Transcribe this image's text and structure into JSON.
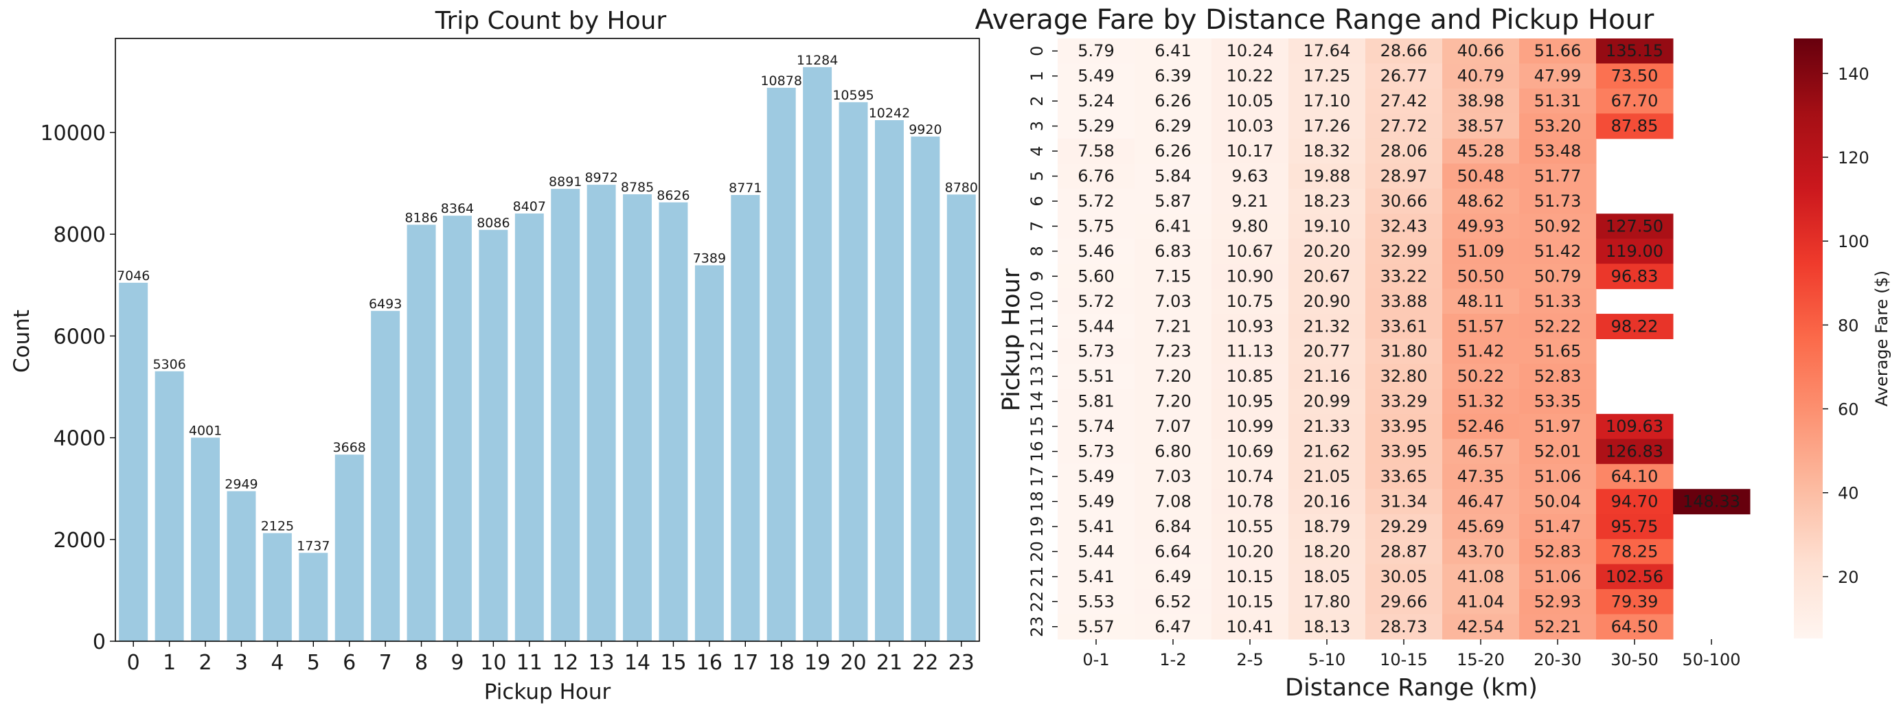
{
  "chart_data": [
    {
      "type": "bar",
      "title": "Trip Count by Hour",
      "xlabel": "Pickup Hour",
      "ylabel": "Count",
      "categories": [
        "0",
        "1",
        "2",
        "3",
        "4",
        "5",
        "6",
        "7",
        "8",
        "9",
        "10",
        "11",
        "12",
        "13",
        "14",
        "15",
        "16",
        "17",
        "18",
        "19",
        "20",
        "21",
        "22",
        "23"
      ],
      "values": [
        7046,
        5306,
        4001,
        2949,
        2125,
        1737,
        3668,
        6493,
        8186,
        8364,
        8086,
        8407,
        8891,
        8972,
        8785,
        8626,
        7389,
        8771,
        10878,
        11284,
        10595,
        10242,
        9920,
        8780
      ],
      "ylim": [
        0,
        11848
      ],
      "yticks": [
        0,
        2000,
        4000,
        6000,
        8000,
        10000
      ],
      "grid": false,
      "bar_color": "#9ecae1",
      "data_labels": true
    },
    {
      "type": "heatmap",
      "title": "Average Fare by Distance Range and Pickup Hour",
      "xlabel": "Distance Range (km)",
      "ylabel": "Pickup Hour",
      "x_categories": [
        "0-1",
        "1-2",
        "2-5",
        "5-10",
        "10-15",
        "15-20",
        "20-30",
        "30-50",
        "50-100"
      ],
      "y_categories": [
        "0",
        "1",
        "2",
        "3",
        "4",
        "5",
        "6",
        "7",
        "8",
        "9",
        "10",
        "11",
        "12",
        "13",
        "14",
        "15",
        "16",
        "17",
        "18",
        "19",
        "20",
        "21",
        "22",
        "23"
      ],
      "values": [
        [
          5.79,
          6.41,
          10.24,
          17.64,
          28.66,
          40.66,
          51.66,
          135.15,
          null
        ],
        [
          5.49,
          6.39,
          10.22,
          17.25,
          26.77,
          40.79,
          47.99,
          73.5,
          null
        ],
        [
          5.24,
          6.26,
          10.05,
          17.1,
          27.42,
          38.98,
          51.31,
          67.7,
          null
        ],
        [
          5.29,
          6.29,
          10.03,
          17.26,
          27.72,
          38.57,
          53.2,
          87.85,
          null
        ],
        [
          7.58,
          6.26,
          10.17,
          18.32,
          28.06,
          45.28,
          53.48,
          null,
          null
        ],
        [
          6.76,
          5.84,
          9.63,
          19.88,
          28.97,
          50.48,
          51.77,
          null,
          null
        ],
        [
          5.72,
          5.87,
          9.21,
          18.23,
          30.66,
          48.62,
          51.73,
          null,
          null
        ],
        [
          5.75,
          6.41,
          9.8,
          19.1,
          32.43,
          49.93,
          50.92,
          127.5,
          null
        ],
        [
          5.46,
          6.83,
          10.67,
          20.2,
          32.99,
          51.09,
          51.42,
          119.0,
          null
        ],
        [
          5.6,
          7.15,
          10.9,
          20.67,
          33.22,
          50.5,
          50.79,
          96.83,
          null
        ],
        [
          5.72,
          7.03,
          10.75,
          20.9,
          33.88,
          48.11,
          51.33,
          null,
          null
        ],
        [
          5.44,
          7.21,
          10.93,
          21.32,
          33.61,
          51.57,
          52.22,
          98.22,
          null
        ],
        [
          5.73,
          7.23,
          11.13,
          20.77,
          31.8,
          51.42,
          51.65,
          null,
          null
        ],
        [
          5.51,
          7.2,
          10.85,
          21.16,
          32.8,
          50.22,
          52.83,
          null,
          null
        ],
        [
          5.81,
          7.2,
          10.95,
          20.99,
          33.29,
          51.32,
          53.35,
          null,
          null
        ],
        [
          5.74,
          7.07,
          10.99,
          21.33,
          33.95,
          52.46,
          51.97,
          109.63,
          null
        ],
        [
          5.73,
          6.8,
          10.69,
          21.62,
          33.95,
          46.57,
          52.01,
          126.83,
          null
        ],
        [
          5.49,
          7.03,
          10.74,
          21.05,
          33.65,
          47.35,
          51.06,
          64.1,
          null
        ],
        [
          5.49,
          7.08,
          10.78,
          20.16,
          31.34,
          46.47,
          50.04,
          94.7,
          148.33
        ],
        [
          5.41,
          6.84,
          10.55,
          18.79,
          29.29,
          45.69,
          51.47,
          95.75,
          null
        ],
        [
          5.44,
          6.64,
          10.2,
          18.2,
          28.87,
          43.7,
          52.83,
          78.25,
          null
        ],
        [
          5.41,
          6.49,
          10.15,
          18.05,
          30.05,
          41.08,
          51.06,
          102.56,
          null
        ],
        [
          5.53,
          6.52,
          10.15,
          17.8,
          29.66,
          41.04,
          52.93,
          79.39,
          null
        ],
        [
          5.57,
          6.47,
          10.41,
          18.13,
          28.73,
          42.54,
          52.21,
          64.5,
          null
        ]
      ],
      "value_format": "2 decimals",
      "colormap": "Reds",
      "color_range": [
        5.24,
        148.33
      ],
      "colorbar_label": "Average Fare ($)",
      "colorbar_ticks": [
        20,
        40,
        60,
        80,
        100,
        120,
        140
      ]
    }
  ]
}
